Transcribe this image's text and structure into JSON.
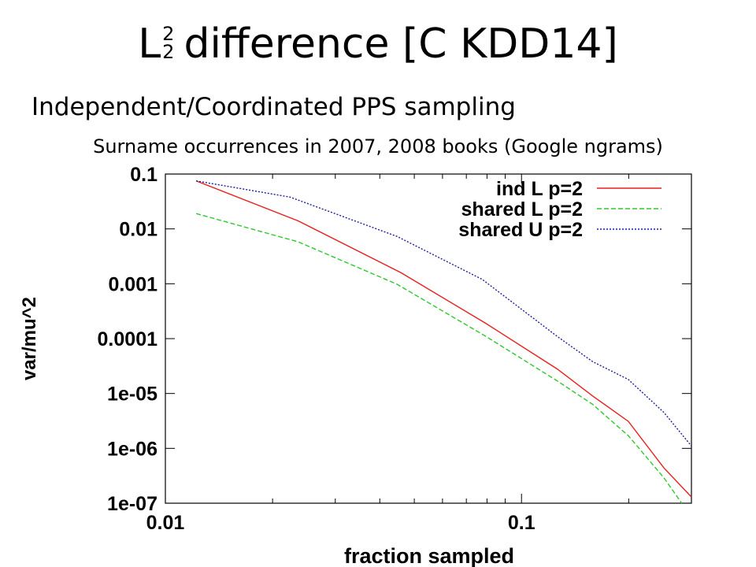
{
  "slide": {
    "title_symbol": "L",
    "title_superscript": "2",
    "title_subscript": "2",
    "title_rest": "difference [C KDD14]",
    "subtitle": "Independent/Coordinated PPS sampling"
  },
  "chart_data": {
    "type": "line",
    "title": "Surname occurrences in 2007, 2008 books (Google ngrams)",
    "xlabel": "fraction sampled",
    "ylabel": "var/mu^2",
    "xscale": "log",
    "yscale": "log",
    "xlim": [
      0.01,
      0.3
    ],
    "ylim": [
      1e-07,
      0.1
    ],
    "xticks": [
      {
        "value": 0.01,
        "label": "0.01"
      },
      {
        "value": 0.1,
        "label": "0.1"
      }
    ],
    "yticks": [
      {
        "value": 0.1,
        "label": "0.1"
      },
      {
        "value": 0.01,
        "label": "0.01"
      },
      {
        "value": 0.001,
        "label": "0.001"
      },
      {
        "value": 0.0001,
        "label": "0.0001"
      },
      {
        "value": 1e-05,
        "label": "1e-05"
      },
      {
        "value": 1e-06,
        "label": "1e-06"
      },
      {
        "value": 1e-07,
        "label": "1e-07"
      }
    ],
    "legend_position": "top-right",
    "grid": false,
    "series": [
      {
        "name": "ind L p=2",
        "color": "#e8201c",
        "dash": "solid",
        "points": [
          [
            0.0122,
            0.075
          ],
          [
            0.0236,
            0.014
          ],
          [
            0.0458,
            0.0016
          ],
          [
            0.0794,
            0.00019
          ],
          [
            0.1259,
            2.8e-05
          ],
          [
            0.1585,
            9e-06
          ],
          [
            0.1995,
            3.1e-06
          ],
          [
            0.2512,
            4.4e-07
          ],
          [
            0.3,
            1.3e-07
          ]
        ]
      },
      {
        "name": "shared L p=2",
        "color": "#2ec82e",
        "dash": "dashed",
        "points": [
          [
            0.0122,
            0.019
          ],
          [
            0.0236,
            0.0058
          ],
          [
            0.0447,
            0.00098
          ],
          [
            0.0794,
            0.00011
          ],
          [
            0.1259,
            1.7e-05
          ],
          [
            0.1585,
            6.3e-06
          ],
          [
            0.1995,
            1.7e-06
          ],
          [
            0.2512,
            2.9e-07
          ],
          [
            0.2818,
            1e-07
          ]
        ]
      },
      {
        "name": "shared U p=2",
        "color": "#1c1ca0",
        "dash": "dotted",
        "points": [
          [
            0.0122,
            0.075
          ],
          [
            0.0224,
            0.038
          ],
          [
            0.0447,
            0.0073
          ],
          [
            0.0776,
            0.0012
          ],
          [
            0.1259,
            0.00011
          ],
          [
            0.1585,
            3.8e-05
          ],
          [
            0.1995,
            1.8e-05
          ],
          [
            0.2512,
            4.5e-06
          ],
          [
            0.3,
            1.1e-06
          ]
        ]
      }
    ]
  }
}
